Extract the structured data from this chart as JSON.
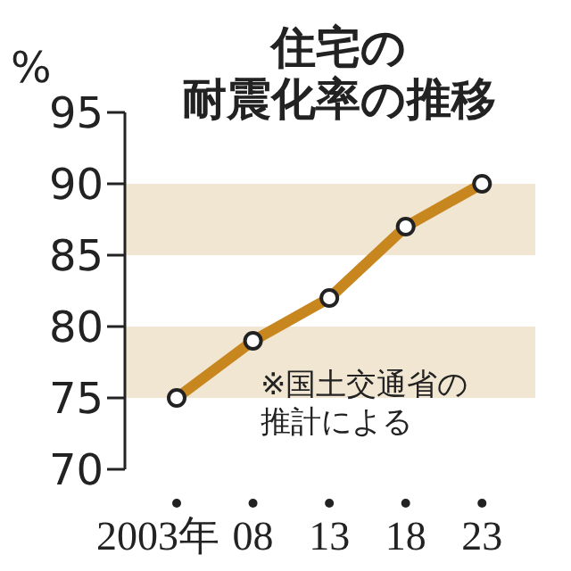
{
  "chart_data": {
    "type": "line",
    "title": "住宅の耐震化率の推移",
    "ylabel": "%",
    "annotations": [
      "※国土交通省の推計による"
    ],
    "categories": [
      "2003年",
      "08",
      "13",
      "18",
      "23"
    ],
    "series": [
      {
        "color": "#c8861e",
        "values": [
          75,
          79,
          82,
          87,
          90
        ]
      }
    ],
    "ylim": [
      70,
      95
    ],
    "yticks": [
      70,
      75,
      80,
      85,
      90,
      95
    ],
    "bands": [
      {
        "axis": "y",
        "from": 75,
        "to": 80,
        "color": "#f0e6d2"
      },
      {
        "axis": "y",
        "from": 85,
        "to": 90,
        "color": "#f0e6d2"
      }
    ],
    "marker": "circle",
    "line_style": "solid"
  }
}
